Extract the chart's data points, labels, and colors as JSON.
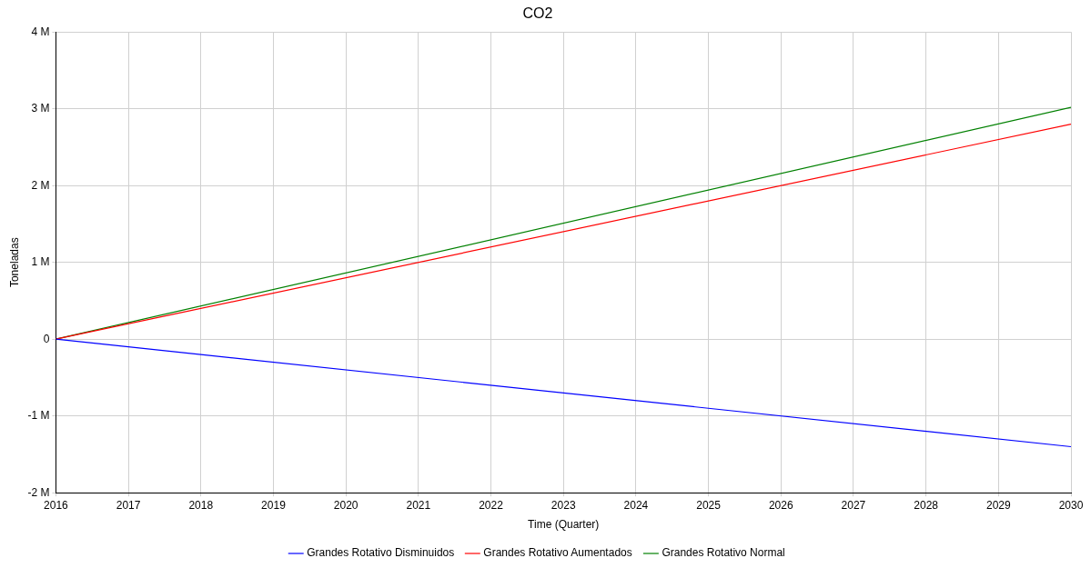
{
  "chart_data": {
    "type": "line",
    "title": "CO2",
    "xlabel": "Time (Quarter)",
    "ylabel": "Toneladas",
    "x": [
      2016,
      2030
    ],
    "series": [
      {
        "name": "Grandes Rotativo Disminuidos",
        "color": "#0000ff",
        "values": [
          0,
          -1400000
        ]
      },
      {
        "name": "Grandes Rotativo Aumentados",
        "color": "#ff0000",
        "values": [
          0,
          2800000
        ]
      },
      {
        "name": "Grandes Rotativo Normal",
        "color": "#008000",
        "values": [
          0,
          3020000
        ]
      }
    ],
    "xlim": [
      2016,
      2030
    ],
    "xticks": [
      2016,
      2017,
      2018,
      2019,
      2020,
      2021,
      2022,
      2023,
      2024,
      2025,
      2026,
      2027,
      2028,
      2029,
      2030
    ],
    "ylim": [
      -2000000,
      4000000
    ],
    "yticks": [
      {
        "value": -2000000,
        "label": "-2 M"
      },
      {
        "value": -1000000,
        "label": "-1 M"
      },
      0,
      {
        "value": 1000000,
        "label": "1 M"
      },
      {
        "value": 2000000,
        "label": "2 M"
      },
      {
        "value": 3000000,
        "label": "3 M"
      },
      {
        "value": 4000000,
        "label": "4 M"
      }
    ],
    "grid": true,
    "legend": "bottom",
    "marker": "none",
    "line_style": "solid"
  }
}
